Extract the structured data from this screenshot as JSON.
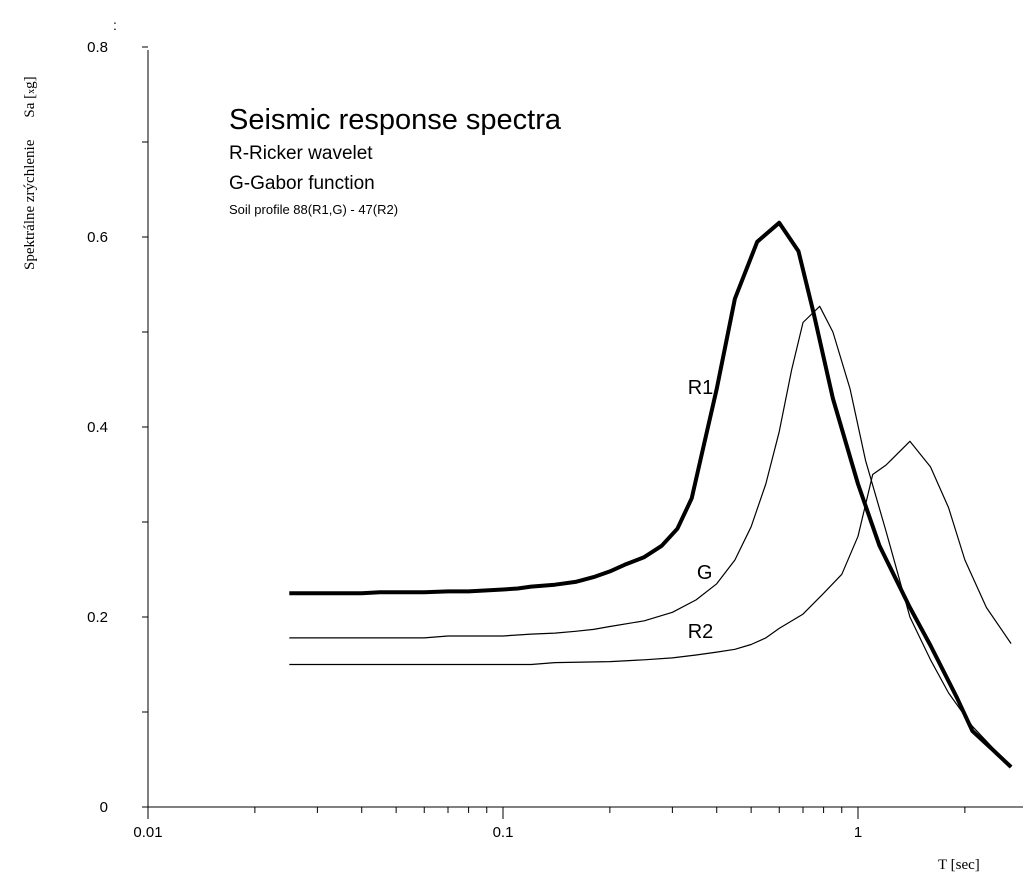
{
  "chart_data": {
    "type": "line",
    "title": "Seismic response spectra",
    "subtitle_lines": [
      "R-Ricker wavelet",
      "G-Gabor function"
    ],
    "note": "Soil profile 88(R1,G) - 47(R2)",
    "xlabel": "T [sec]",
    "ylabel_primary": "Sa [",
    "ylabel_sub": "x",
    "ylabel_after": "g]",
    "ylabel_secondary": "Spektrálne zrýchlenie",
    "x_scale": "log",
    "xlim": [
      0.01,
      3.0
    ],
    "ylim": [
      0,
      0.8
    ],
    "x_tick_labels": [
      {
        "value": 0.01,
        "label": "0.01"
      },
      {
        "value": 0.1,
        "label": "0.1"
      },
      {
        "value": 1,
        "label": "1"
      }
    ],
    "y_tick_labels": [
      {
        "value": 0,
        "label": "0"
      },
      {
        "value": 0.2,
        "label": "0.2"
      },
      {
        "value": 0.4,
        "label": "0.4"
      },
      {
        "value": 0.6,
        "label": "0.6"
      },
      {
        "value": 0.8,
        "label": "0.8"
      }
    ],
    "grid": false,
    "series": [
      {
        "name": "R1",
        "emphasis": "bold",
        "label_at": [
          0.36,
          0.435
        ],
        "points": [
          [
            0.025,
            0.225
          ],
          [
            0.03,
            0.225
          ],
          [
            0.04,
            0.225
          ],
          [
            0.045,
            0.226
          ],
          [
            0.06,
            0.226
          ],
          [
            0.07,
            0.227
          ],
          [
            0.08,
            0.227
          ],
          [
            0.1,
            0.229
          ],
          [
            0.11,
            0.23
          ],
          [
            0.12,
            0.232
          ],
          [
            0.14,
            0.234
          ],
          [
            0.16,
            0.237
          ],
          [
            0.18,
            0.242
          ],
          [
            0.2,
            0.248
          ],
          [
            0.22,
            0.255
          ],
          [
            0.25,
            0.263
          ],
          [
            0.28,
            0.275
          ],
          [
            0.31,
            0.293
          ],
          [
            0.34,
            0.325
          ],
          [
            0.37,
            0.385
          ],
          [
            0.4,
            0.44
          ],
          [
            0.45,
            0.535
          ],
          [
            0.52,
            0.595
          ],
          [
            0.6,
            0.615
          ],
          [
            0.68,
            0.585
          ],
          [
            0.75,
            0.52
          ],
          [
            0.85,
            0.43
          ],
          [
            1.0,
            0.34
          ],
          [
            1.15,
            0.275
          ],
          [
            1.4,
            0.21
          ],
          [
            1.6,
            0.17
          ],
          [
            1.9,
            0.115
          ],
          [
            2.1,
            0.08
          ],
          [
            2.4,
            0.06
          ],
          [
            2.7,
            0.042
          ]
        ]
      },
      {
        "name": "G",
        "emphasis": "thin",
        "label_at": [
          0.37,
          0.24
        ],
        "points": [
          [
            0.025,
            0.178
          ],
          [
            0.04,
            0.178
          ],
          [
            0.06,
            0.178
          ],
          [
            0.07,
            0.18
          ],
          [
            0.1,
            0.18
          ],
          [
            0.12,
            0.182
          ],
          [
            0.14,
            0.183
          ],
          [
            0.16,
            0.185
          ],
          [
            0.18,
            0.187
          ],
          [
            0.2,
            0.19
          ],
          [
            0.25,
            0.196
          ],
          [
            0.3,
            0.205
          ],
          [
            0.35,
            0.218
          ],
          [
            0.4,
            0.235
          ],
          [
            0.45,
            0.26
          ],
          [
            0.5,
            0.295
          ],
          [
            0.55,
            0.34
          ],
          [
            0.6,
            0.395
          ],
          [
            0.65,
            0.46
          ],
          [
            0.7,
            0.51
          ],
          [
            0.78,
            0.527
          ],
          [
            0.85,
            0.5
          ],
          [
            0.95,
            0.44
          ],
          [
            1.05,
            0.365
          ],
          [
            1.2,
            0.29
          ],
          [
            1.4,
            0.2
          ],
          [
            1.6,
            0.155
          ],
          [
            1.8,
            0.12
          ],
          [
            2.1,
            0.085
          ],
          [
            2.5,
            0.055
          ],
          [
            2.7,
            0.044
          ]
        ]
      },
      {
        "name": "R2",
        "emphasis": "thin",
        "label_at": [
          0.36,
          0.178
        ],
        "points": [
          [
            0.025,
            0.15
          ],
          [
            0.04,
            0.15
          ],
          [
            0.06,
            0.15
          ],
          [
            0.12,
            0.15
          ],
          [
            0.14,
            0.152
          ],
          [
            0.2,
            0.153
          ],
          [
            0.25,
            0.155
          ],
          [
            0.3,
            0.157
          ],
          [
            0.35,
            0.16
          ],
          [
            0.4,
            0.163
          ],
          [
            0.45,
            0.166
          ],
          [
            0.5,
            0.171
          ],
          [
            0.55,
            0.178
          ],
          [
            0.6,
            0.188
          ],
          [
            0.7,
            0.203
          ],
          [
            0.8,
            0.225
          ],
          [
            0.9,
            0.245
          ],
          [
            1.0,
            0.285
          ],
          [
            1.1,
            0.35
          ],
          [
            1.2,
            0.36
          ],
          [
            1.4,
            0.385
          ],
          [
            1.6,
            0.358
          ],
          [
            1.8,
            0.315
          ],
          [
            2.0,
            0.26
          ],
          [
            2.3,
            0.21
          ],
          [
            2.7,
            0.172
          ]
        ]
      }
    ]
  }
}
